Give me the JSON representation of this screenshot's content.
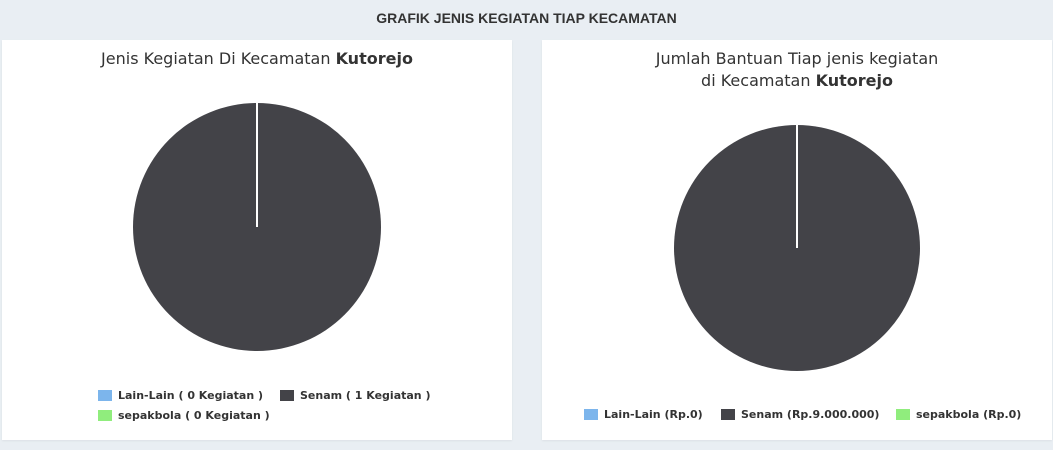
{
  "header": {
    "title": "GRAFIK JENIS KEGIATAN TIAP KECAMATAN"
  },
  "colors": {
    "lain_lain": "#7cb5ec",
    "senam": "#434348",
    "sepakbola": "#90ed7d"
  },
  "chart_data": [
    {
      "type": "pie",
      "title_prefix": "Jenis Kegiatan Di Kecamatan ",
      "title_bold": "Kutorejo",
      "categories": [
        "Lain-Lain",
        "Senam",
        "sepakbola"
      ],
      "values": [
        0,
        1,
        0
      ],
      "legend_labels": [
        "Lain-Lain ( 0 Kegiatan )",
        "Senam ( 1 Kegiatan )",
        "sepakbola ( 0 Kegiatan )"
      ],
      "legend_position": "bottom"
    },
    {
      "type": "pie",
      "title_line1": "Jumlah Bantuan Tiap jenis kegiatan",
      "title_line2_prefix": "di Kecamatan ",
      "title_bold": "Kutorejo",
      "categories": [
        "Lain-Lain",
        "Senam",
        "sepakbola"
      ],
      "values": [
        0,
        9000000,
        0
      ],
      "legend_labels": [
        "Lain-Lain (Rp.0)",
        "Senam (Rp.9.000.000)",
        "sepakbola (Rp.0)"
      ],
      "legend_position": "bottom"
    }
  ]
}
